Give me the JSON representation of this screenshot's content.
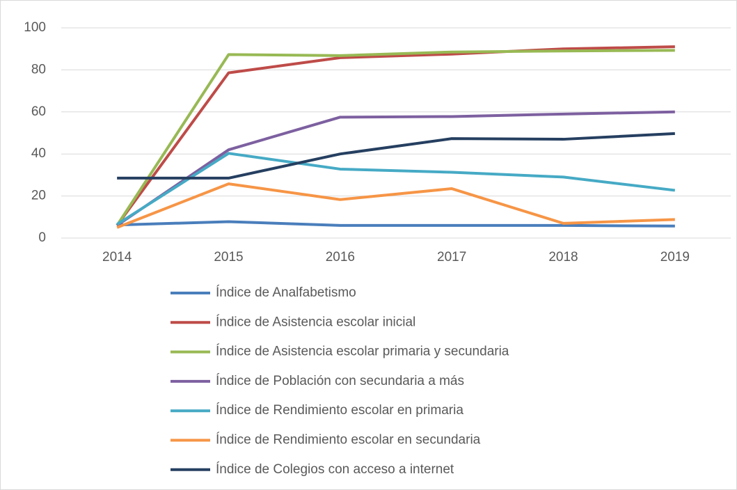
{
  "chart_data": {
    "type": "line",
    "categories": [
      "2014",
      "2015",
      "2016",
      "2017",
      "2018",
      "2019"
    ],
    "series": [
      {
        "name": "Índice de Analfabetismo",
        "color": "#4a7ebb",
        "values": [
          6.2,
          7.8,
          6,
          6,
          6,
          5.7
        ]
      },
      {
        "name": "Índice de Asistencia escolar inicial",
        "color": "#be4b48",
        "values": [
          6,
          78.6,
          85.8,
          87.5,
          90,
          91
        ]
      },
      {
        "name": "Índice de Asistencia escolar primaria y secundaria",
        "color": "#98b954",
        "values": [
          6,
          87.3,
          86.8,
          88.5,
          89,
          89.3
        ]
      },
      {
        "name": "Índice de Población con secundaria a más",
        "color": "#7d60a0",
        "values": [
          6,
          42,
          57.5,
          57.8,
          59,
          60
        ]
      },
      {
        "name": "Índice de Rendimiento escolar en primaria",
        "color": "#46aac5",
        "values": [
          6.5,
          40.3,
          32.8,
          31.3,
          29,
          22.7
        ]
      },
      {
        "name": "Índice de Rendimiento escolar en secundaria",
        "color": "#f69546",
        "values": [
          5,
          25.8,
          18.3,
          23.5,
          7,
          8.8
        ]
      },
      {
        "name": "Índice de Colegios con acceso a internet",
        "color": "#253f60",
        "values": [
          28.5,
          28.5,
          40,
          47.3,
          47,
          49.7
        ]
      }
    ],
    "ylim": [
      0,
      100
    ],
    "yticks": [
      0,
      20,
      40,
      60,
      80,
      100
    ],
    "grid": true
  }
}
